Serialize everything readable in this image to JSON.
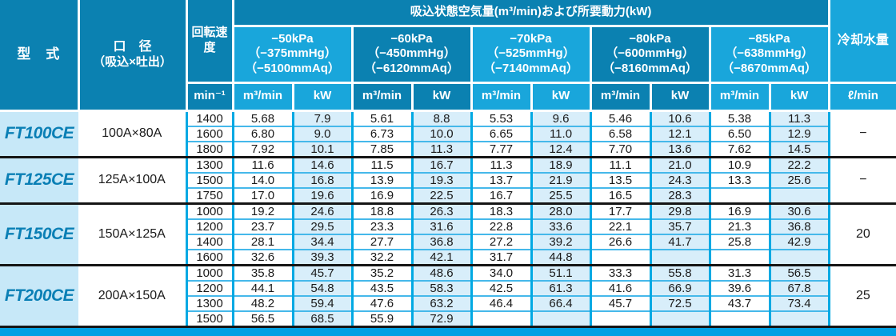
{
  "table": {
    "title": "吸込状態空気量(m³/min)および所要動力(kW)",
    "headers": {
      "model": "型　式",
      "bore_line1": "口　径",
      "bore_line2": "（吸込×吐出）",
      "speed": "回転速度",
      "cooling": "冷却水量"
    },
    "units": {
      "speed": "min⁻¹",
      "flow": "m³/min",
      "power": "kW",
      "cooling": "ℓ/min"
    },
    "pressures": [
      {
        "kpa": "−50kPa",
        "mmhg": "（−375mmHg）",
        "mmaq": "（−5100mmAq）"
      },
      {
        "kpa": "−60kPa",
        "mmhg": "（−450mmHg）",
        "mmaq": "（−6120mmAq）"
      },
      {
        "kpa": "−70kPa",
        "mmhg": "（−525mmHg）",
        "mmaq": "（−7140mmAq）"
      },
      {
        "kpa": "−80kPa",
        "mmhg": "（−600mmHg）",
        "mmaq": "（−8160mmAq）"
      },
      {
        "kpa": "−85kPa",
        "mmhg": "（−638mmHg）",
        "mmaq": "（−8670mmAq）"
      }
    ],
    "groups": [
      {
        "model": "FT100CE",
        "bore": "100A×80A",
        "cooling": "−",
        "rows": [
          {
            "speed": "1400",
            "values": [
              "5.68",
              "7.9",
              "5.61",
              "8.8",
              "5.53",
              "9.6",
              "5.46",
              "10.6",
              "5.38",
              "11.3"
            ]
          },
          {
            "speed": "1600",
            "values": [
              "6.80",
              "9.0",
              "6.73",
              "10.0",
              "6.65",
              "11.0",
              "6.58",
              "12.1",
              "6.50",
              "12.9"
            ]
          },
          {
            "speed": "1800",
            "values": [
              "7.92",
              "10.1",
              "7.85",
              "11.3",
              "7.77",
              "12.4",
              "7.70",
              "13.6",
              "7.62",
              "14.5"
            ]
          }
        ]
      },
      {
        "model": "FT125CE",
        "bore": "125A×100A",
        "cooling": "−",
        "rows": [
          {
            "speed": "1300",
            "values": [
              "11.6",
              "14.6",
              "11.5",
              "16.7",
              "11.3",
              "18.9",
              "11.1",
              "21.0",
              "10.9",
              "22.2"
            ]
          },
          {
            "speed": "1500",
            "values": [
              "14.0",
              "16.8",
              "13.9",
              "19.3",
              "13.7",
              "21.9",
              "13.5",
              "24.3",
              "13.3",
              "25.6"
            ]
          },
          {
            "speed": "1750",
            "values": [
              "17.0",
              "19.6",
              "16.9",
              "22.5",
              "16.7",
              "25.5",
              "16.5",
              "28.3",
              "",
              ""
            ]
          }
        ]
      },
      {
        "model": "FT150CE",
        "bore": "150A×125A",
        "cooling": "20",
        "rows": [
          {
            "speed": "1000",
            "values": [
              "19.2",
              "24.6",
              "18.8",
              "26.3",
              "18.3",
              "28.0",
              "17.7",
              "29.8",
              "16.9",
              "30.6"
            ]
          },
          {
            "speed": "1200",
            "values": [
              "23.7",
              "29.5",
              "23.3",
              "31.6",
              "22.8",
              "33.6",
              "22.1",
              "35.7",
              "21.3",
              "36.8"
            ]
          },
          {
            "speed": "1400",
            "values": [
              "28.1",
              "34.4",
              "27.7",
              "36.8",
              "27.2",
              "39.2",
              "26.6",
              "41.7",
              "25.8",
              "42.9"
            ]
          },
          {
            "speed": "1600",
            "values": [
              "32.6",
              "39.3",
              "32.2",
              "42.1",
              "31.7",
              "44.8",
              "",
              "",
              "",
              ""
            ]
          }
        ]
      },
      {
        "model": "FT200CE",
        "bore": "200A×150A",
        "cooling": "25",
        "rows": [
          {
            "speed": "1000",
            "values": [
              "35.8",
              "45.7",
              "35.2",
              "48.6",
              "34.0",
              "51.1",
              "33.3",
              "55.8",
              "31.3",
              "56.5"
            ]
          },
          {
            "speed": "1200",
            "values": [
              "44.1",
              "54.8",
              "43.5",
              "58.3",
              "42.5",
              "61.3",
              "41.6",
              "66.9",
              "39.6",
              "67.8"
            ]
          },
          {
            "speed": "1300",
            "values": [
              "48.2",
              "59.4",
              "47.6",
              "63.2",
              "46.4",
              "66.4",
              "45.7",
              "72.5",
              "43.7",
              "73.4"
            ]
          },
          {
            "speed": "1500",
            "values": [
              "56.5",
              "68.5",
              "55.9",
              "72.9",
              "",
              "",
              "",
              "",
              "",
              ""
            ]
          }
        ]
      }
    ]
  }
}
